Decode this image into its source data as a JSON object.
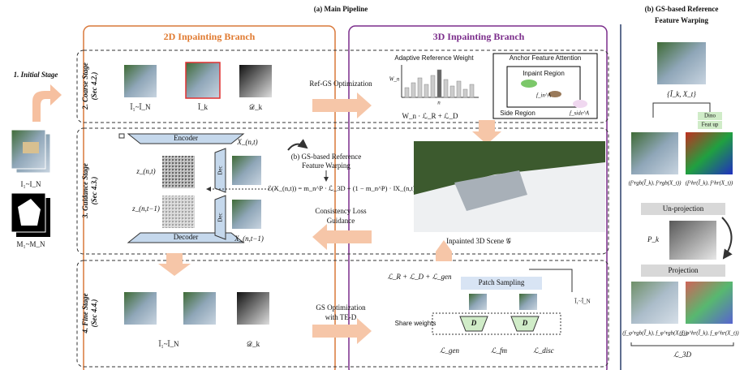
{
  "header": {
    "main_title": "(a) Main Pipeline",
    "side_title": [
      "(b) GS-based Reference",
      "Feature Warping"
    ]
  },
  "branches": {
    "two_d": "2D Inpainting Branch",
    "three_d": "3D Inpainting Branch"
  },
  "initial": {
    "label": "1. Initial Stage",
    "images": "I₁~I_N",
    "masks": "M₁~M_N"
  },
  "coarse": {
    "label": [
      "2. Coarse Stage",
      "(Sec 4.2.)"
    ],
    "inpainted": "Ī₁~Ī_N",
    "reference": "Ī_k",
    "depth": "𝒟_k",
    "arrow": "Ref-GS Optimization",
    "weight_title": "Adaptive Reference Weight",
    "weight_axis": "W_n",
    "weight_x": "n",
    "loss": "W_n · ℒ_R + ℒ_D",
    "attention_title": "Anchor Feature Attention",
    "inpaint_region": "Inpaint Region",
    "side_region": "Side Region",
    "f_in": "f_in^A",
    "f_side": "f_side^A"
  },
  "guidance": {
    "label": [
      "3. Guidance Stage",
      "(Sec 4.3.)"
    ],
    "encoder": "Encoder",
    "decoder": "Decoder",
    "dec": [
      "Dec",
      "Dec"
    ],
    "x_t": "X_(n,t)",
    "x_t1": "X_(n,t−1)",
    "z_t": "z_(n,t)",
    "z_t1": "z_(n,t−1)",
    "warp": [
      "(b) GS-based Reference",
      "Feature Warping"
    ],
    "equation": "ℰ(X_(n,t)) = m_n^P · ℒ_3D + (1 − m_n^P) · ‖X_(n,t) − R_n‖₁",
    "consistency": [
      "Consistency Loss",
      "Guidance"
    ],
    "scene": "Inpainted 3D Scene 𝒢"
  },
  "fine": {
    "label": [
      "4. Fine Stage",
      "(Sec 4.4.)"
    ],
    "inpainted": "Ī₁~Ī_N",
    "depth": "𝒟_k",
    "arrow": [
      "GS Optimization",
      "with TE-D"
    ],
    "loss": "ℒ_R + ℒ_D + ℒ_gen",
    "patch": "Patch Sampling",
    "views": "Ī₁~Ī_N",
    "share": "Share weights",
    "disc": [
      "D",
      "D"
    ],
    "l_gen": "ℒ_gen",
    "l_fm": "ℒ_fm",
    "l_disc": "ℒ_disc"
  },
  "warping": {
    "input": "{Ī_k, X_t}",
    "dino": "Dino",
    "featup": "Feat up",
    "f_rgb": "(f^rgb(Ī_k), f^rgb(X_t))",
    "f_hr": "(f^hr(Ī_k), f^hr(X_t))",
    "unprojection": "Un-projection",
    "pk": "P_k",
    "projection": "Projection",
    "fp_rgb": "(f_φ^rgb(Ī_k), f_φ^rgb(X_t))",
    "fp_hr": "(f_φ^hr(Ī_k), f_φ^hr(X_t))",
    "loss": "ℒ_3D"
  }
}
